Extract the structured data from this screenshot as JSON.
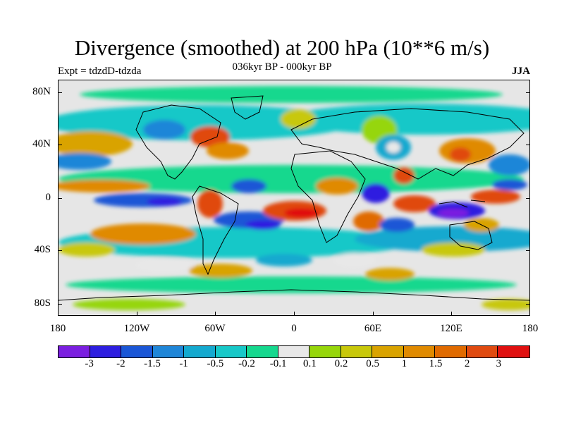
{
  "title": "Divergence (smoothed) at 200 hPa (10**6 m/s)",
  "subtitle": "036kyr BP - 000kyr BP",
  "left_label": "Expt = tdzdD-tdzda",
  "right_label": "JJA",
  "lat_labels": [
    "80N",
    "40N",
    "0",
    "40S",
    "80S"
  ],
  "lon_labels": [
    "180",
    "120W",
    "60W",
    "0",
    "60E",
    "120E",
    "180"
  ],
  "colorbar": {
    "colors": [
      "#7b1fe0",
      "#2d1ee0",
      "#1a56d6",
      "#1f86d8",
      "#14a9cf",
      "#17c8c8",
      "#15d88e",
      "#e8e8e8",
      "#96d60a",
      "#c8c80a",
      "#d9a300",
      "#e08a00",
      "#e06a00",
      "#e04a10",
      "#e01010"
    ],
    "labels": [
      "-3",
      "-2",
      "-1.5",
      "-1",
      "-0.5",
      "-0.2",
      "-0.1",
      "0.1",
      "0.2",
      "0.5",
      "1",
      "1.5",
      "2",
      "3"
    ]
  },
  "chart_data": {
    "type": "heatmap",
    "title": "Divergence (smoothed) at 200 hPa (10**6 m/s)",
    "subtitle": "036kyr BP - 000kyr BP",
    "experiment": "Expt = tdzdD-tdzda",
    "season": "JJA",
    "x_range_deg": [
      -180,
      180
    ],
    "y_range_deg": [
      -90,
      90
    ],
    "contour_levels": [
      -3,
      -2,
      -1.5,
      -1,
      -0.5,
      -0.2,
      -0.1,
      0.1,
      0.2,
      0.5,
      1,
      1.5,
      2,
      3
    ],
    "features": [
      {
        "name": "equatorial-pacific-west-negative",
        "lon": -150,
        "lat": 2,
        "value": -1
      },
      {
        "name": "central-pacific-negative",
        "lon": -120,
        "lat": 0,
        "value": -2
      },
      {
        "name": "east-pacific-positive",
        "lon": -70,
        "lat": -5,
        "value": 2
      },
      {
        "name": "south-atlantic-negative",
        "lon": -35,
        "lat": -15,
        "value": -3
      },
      {
        "name": "tropical-atlantic-positive",
        "lon": -10,
        "lat": -5,
        "value": 3
      },
      {
        "name": "africa-negative",
        "lon": 40,
        "lat": 2,
        "value": -3
      },
      {
        "name": "indian-ocean-positive",
        "lon": 75,
        "lat": 0,
        "value": 2
      },
      {
        "name": "maritime-continent-negative",
        "lon": 120,
        "lat": -5,
        "value": -3
      },
      {
        "name": "north-atlantic-positive",
        "lon": -40,
        "lat": 55,
        "value": 2
      },
      {
        "name": "west-pacific-positive",
        "lon": 150,
        "lat": 5,
        "value": 3
      },
      {
        "name": "south-pacific-positive",
        "lon": -130,
        "lat": -25,
        "value": 1.5
      },
      {
        "name": "north-pacific-positive",
        "lon": 170,
        "lat": 40,
        "value": 1
      }
    ]
  }
}
